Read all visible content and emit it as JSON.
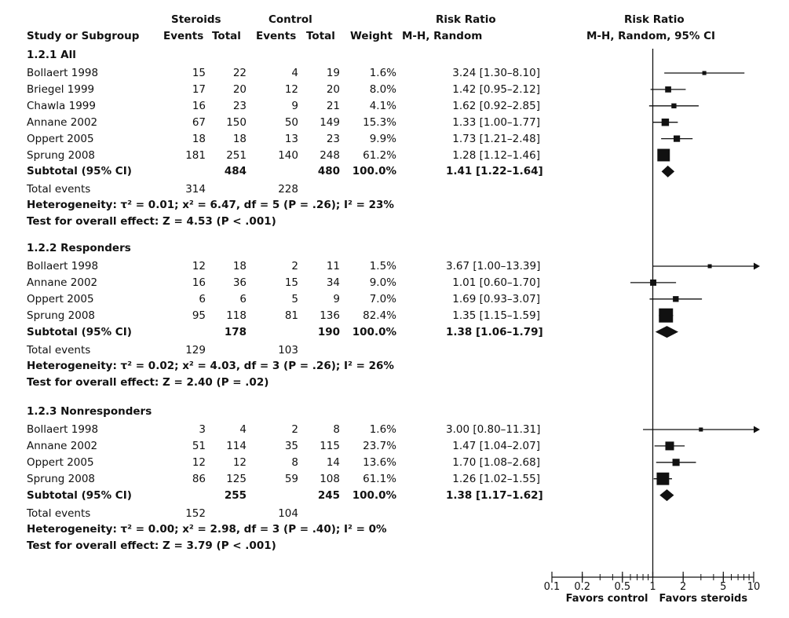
{
  "header": {
    "steroids": "Steroids",
    "control": "Control",
    "risk_ratio_left": "Risk Ratio",
    "risk_ratio_right": "Risk Ratio",
    "study_or_subgroup": "Study or Subgroup",
    "events1": "Events",
    "total1": "Total",
    "events2": "Events",
    "total2": "Total",
    "weight": "Weight",
    "method_left": "M-H, Random",
    "method_right": "M-H, Random, 95% CI"
  },
  "groups": [
    {
      "title": "1.2.1 All",
      "studies": [
        {
          "name": "Bollaert 1998",
          "e1": "15",
          "t1": "22",
          "e2": "4",
          "t2": "19",
          "weight": "1.6%",
          "rr": "3.24 [1.30–8.10]"
        },
        {
          "name": "Briegel 1999",
          "e1": "17",
          "t1": "20",
          "e2": "12",
          "t2": "20",
          "weight": "8.0%",
          "rr": "1.42 [0.95–2.12]"
        },
        {
          "name": "Chawla 1999",
          "e1": "16",
          "t1": "23",
          "e2": "9",
          "t2": "21",
          "weight": "4.1%",
          "rr": "1.62 [0.92–2.85]"
        },
        {
          "name": "Annane 2002",
          "e1": "67",
          "t1": "150",
          "e2": "50",
          "t2": "149",
          "weight": "15.3%",
          "rr": "1.33 [1.00–1.77]"
        },
        {
          "name": "Oppert 2005",
          "e1": "18",
          "t1": "18",
          "e2": "13",
          "t2": "23",
          "weight": "9.9%",
          "rr": "1.73 [1.21–2.48]"
        },
        {
          "name": "Sprung 2008",
          "e1": "181",
          "t1": "251",
          "e2": "140",
          "t2": "248",
          "weight": "61.2%",
          "rr": "1.28 [1.12–1.46]"
        }
      ],
      "subtotal": {
        "label": "Subtotal (95% CI)",
        "t1": "484",
        "t2": "480",
        "weight": "100.0%",
        "rr": "1.41 [1.22–1.64]"
      },
      "total_events": {
        "label": "Total events",
        "e1": "314",
        "e2": "228"
      },
      "heterogeneity": "Heterogeneity: τ² = 0.01; x² = 6.47, df = 5 (P = .26); I² = 23%",
      "overall": "Test for overall effect: Z = 4.53 (P < .001)"
    },
    {
      "title": "1.2.2 Responders",
      "studies": [
        {
          "name": "Bollaert 1998",
          "e1": "12",
          "t1": "18",
          "e2": "2",
          "t2": "11",
          "weight": "1.5%",
          "rr": "3.67 [1.00–13.39]"
        },
        {
          "name": "Annane 2002",
          "e1": "16",
          "t1": "36",
          "e2": "15",
          "t2": "34",
          "weight": "9.0%",
          "rr": "1.01 [0.60–1.70]"
        },
        {
          "name": "Oppert 2005",
          "e1": "6",
          "t1": "6",
          "e2": "5",
          "t2": "9",
          "weight": "7.0%",
          "rr": "1.69 [0.93–3.07]"
        },
        {
          "name": "Sprung 2008",
          "e1": "95",
          "t1": "118",
          "e2": "81",
          "t2": "136",
          "weight": "82.4%",
          "rr": "1.35 [1.15–1.59]"
        }
      ],
      "subtotal": {
        "label": "Subtotal (95% CI)",
        "t1": "178",
        "t2": "190",
        "weight": "100.0%",
        "rr": "1.38 [1.06–1.79]"
      },
      "total_events": {
        "label": "Total events",
        "e1": "129",
        "e2": "103"
      },
      "heterogeneity": "Heterogeneity: τ² = 0.02; x² = 4.03, df = 3 (P = .26); I² = 26%",
      "overall": "Test for overall effect: Z = 2.40 (P = .02)"
    },
    {
      "title": "1.2.3 Nonresponders",
      "studies": [
        {
          "name": "Bollaert 1998",
          "e1": "3",
          "t1": "4",
          "e2": "2",
          "t2": "8",
          "weight": "1.6%",
          "rr": "3.00 [0.80–11.31]"
        },
        {
          "name": "Annane 2002",
          "e1": "51",
          "t1": "114",
          "e2": "35",
          "t2": "115",
          "weight": "23.7%",
          "rr": "1.47 [1.04–2.07]"
        },
        {
          "name": "Oppert 2005",
          "e1": "12",
          "t1": "12",
          "e2": "8",
          "t2": "14",
          "weight": "13.6%",
          "rr": "1.70 [1.08–2.68]"
        },
        {
          "name": "Sprung 2008",
          "e1": "86",
          "t1": "125",
          "e2": "59",
          "t2": "108",
          "weight": "61.1%",
          "rr": "1.26 [1.02–1.55]"
        }
      ],
      "subtotal": {
        "label": "Subtotal (95% CI)",
        "t1": "255",
        "t2": "245",
        "weight": "100.0%",
        "rr": "1.38 [1.17–1.62]"
      },
      "total_events": {
        "label": "Total events",
        "e1": "152",
        "e2": "104"
      },
      "heterogeneity": "Heterogeneity: τ² = 0.00; x² = 2.98, df = 3 (P = .40); I² = 0%",
      "overall": "Test for overall effect: Z = 3.79 (P < .001)"
    }
  ],
  "chart_data": {
    "type": "forest",
    "scale": "log",
    "xlim": [
      0.1,
      10
    ],
    "reference_line": 1,
    "ticks": [
      {
        "value": 0.1,
        "label": "0.1"
      },
      {
        "value": 0.2,
        "label": "0.2"
      },
      {
        "value": 0.5,
        "label": "0.5"
      },
      {
        "value": 1,
        "label": "1"
      },
      {
        "value": 2,
        "label": "2"
      },
      {
        "value": 5,
        "label": "5"
      },
      {
        "value": 10,
        "label": "10"
      }
    ],
    "favors_left": "Favors control",
    "favors_right": "Favors steroids",
    "groups": [
      {
        "studies": [
          {
            "rr": 3.24,
            "lo": 1.3,
            "hi": 8.1,
            "w": 1.6
          },
          {
            "rr": 1.42,
            "lo": 0.95,
            "hi": 2.12,
            "w": 8.0
          },
          {
            "rr": 1.62,
            "lo": 0.92,
            "hi": 2.85,
            "w": 4.1
          },
          {
            "rr": 1.33,
            "lo": 1.0,
            "hi": 1.77,
            "w": 15.3
          },
          {
            "rr": 1.73,
            "lo": 1.21,
            "hi": 2.48,
            "w": 9.9
          },
          {
            "rr": 1.28,
            "lo": 1.12,
            "hi": 1.46,
            "w": 61.2
          }
        ],
        "pooled": {
          "rr": 1.41,
          "lo": 1.22,
          "hi": 1.64
        }
      },
      {
        "studies": [
          {
            "rr": 3.67,
            "lo": 1.0,
            "hi": 13.39,
            "w": 1.5
          },
          {
            "rr": 1.01,
            "lo": 0.6,
            "hi": 1.7,
            "w": 9.0
          },
          {
            "rr": 1.69,
            "lo": 0.93,
            "hi": 3.07,
            "w": 7.0
          },
          {
            "rr": 1.35,
            "lo": 1.15,
            "hi": 1.59,
            "w": 82.4
          }
        ],
        "pooled": {
          "rr": 1.38,
          "lo": 1.06,
          "hi": 1.79
        }
      },
      {
        "studies": [
          {
            "rr": 3.0,
            "lo": 0.8,
            "hi": 11.31,
            "w": 1.6
          },
          {
            "rr": 1.47,
            "lo": 1.04,
            "hi": 2.07,
            "w": 23.7
          },
          {
            "rr": 1.7,
            "lo": 1.08,
            "hi": 2.68,
            "w": 13.6
          },
          {
            "rr": 1.26,
            "lo": 1.02,
            "hi": 1.55,
            "w": 61.1
          }
        ],
        "pooled": {
          "rr": 1.38,
          "lo": 1.17,
          "hi": 1.62
        }
      }
    ]
  }
}
